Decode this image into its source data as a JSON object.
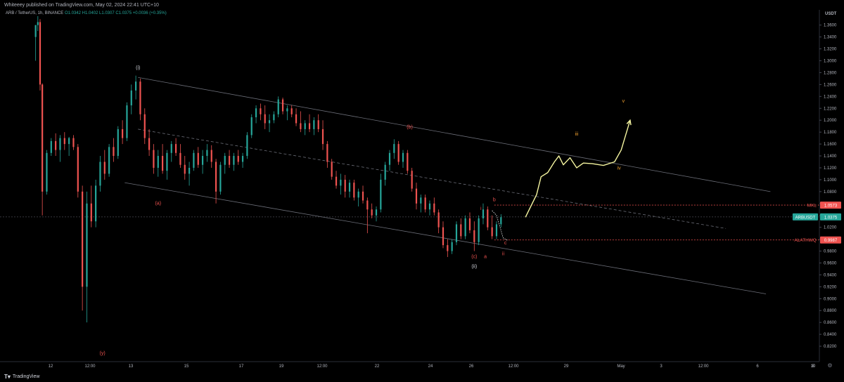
{
  "header": {
    "publish_line": "Whiteeey published on TradingView.com, May 02, 2024 22:41 UTC+10"
  },
  "legend": {
    "symbol": "ARB / TetherUS, 1h, BINANCE",
    "open": "O1.0342",
    "high": "H1.0402",
    "low": "L1.0307",
    "close": "C1.0375",
    "change": "+0.0036 (+0.35%)"
  },
  "colors": {
    "up": "#26a69a",
    "down": "#ef5350",
    "projection": "#f5f5a0",
    "wave_orange": "#f0a030",
    "wave_red": "#ef5350",
    "wave_white": "#d1d4dc"
  },
  "footer": {
    "brand": "TradingView"
  },
  "chart_data": {
    "type": "candlestick",
    "title": "",
    "currency_label": "USDT",
    "ylim": [
      0.8,
      1.375
    ],
    "x_ticks": [
      "12",
      "12:00",
      "13",
      "15",
      "17",
      "19",
      "12:00",
      "22",
      "24",
      "26",
      "12:00",
      "29",
      "May",
      "3",
      "12:00",
      "6",
      "8",
      "10"
    ],
    "y_ticks": [
      "1.3600",
      "1.3400",
      "1.3200",
      "1.3000",
      "1.2800",
      "1.2600",
      "1.2400",
      "1.2200",
      "1.2000",
      "1.1800",
      "1.1600",
      "1.1400",
      "1.1200",
      "1.1000",
      "1.0800",
      "1.0600",
      "1.0400",
      "1.0200",
      "1.0000",
      "0.9800",
      "0.9600",
      "0.9400",
      "0.9200",
      "0.9000",
      "0.8800",
      "0.8600",
      "0.8400",
      "0.8200"
    ],
    "price_labels": [
      {
        "name": "MKL",
        "value": "1.0573",
        "color": "#ef5350"
      },
      {
        "name": "ARBUSDT",
        "value": "1.0375",
        "color": "#26a69a"
      },
      {
        "name": "ALATHWQ",
        "value": "0.9987",
        "color": "#ef5350"
      }
    ],
    "wave_labels": [
      {
        "text": "(i)",
        "x": 15.6,
        "y": 1.286,
        "color": "white"
      },
      {
        "text": "(a)",
        "x": 16.5,
        "y": 1.058,
        "color": "red"
      },
      {
        "text": "(y)",
        "x": 14.0,
        "y": 0.806,
        "color": "red"
      },
      {
        "text": "(b)",
        "x": 27.8,
        "y": 1.186,
        "color": "red"
      },
      {
        "text": "(c)",
        "x": 30.7,
        "y": 0.968,
        "color": "red"
      },
      {
        "text": "(ii)",
        "x": 30.7,
        "y": 0.952,
        "color": "white"
      },
      {
        "text": "a",
        "x": 31.2,
        "y": 0.968,
        "color": "red"
      },
      {
        "text": "b",
        "x": 31.6,
        "y": 1.064,
        "color": "red"
      },
      {
        "text": "c",
        "x": 32.1,
        "y": 0.991,
        "color": "red"
      },
      {
        "text": "i",
        "x": 31.0,
        "y": 1.049,
        "color": "red"
      },
      {
        "text": "ii",
        "x": 32.0,
        "y": 0.973,
        "color": "red"
      },
      {
        "text": "iii",
        "x": 35.3,
        "y": 1.174,
        "color": "orange"
      },
      {
        "text": "iv",
        "x": 37.2,
        "y": 1.117,
        "color": "orange"
      },
      {
        "text": "v",
        "x": 37.4,
        "y": 1.23,
        "color": "orange"
      }
    ],
    "channel_lines": [
      {
        "name": "upper",
        "points": [
          [
            15.6,
            1.272
          ],
          [
            44.0,
            1.08
          ]
        ],
        "style": "solid"
      },
      {
        "name": "middle",
        "points": [
          [
            15.6,
            1.185
          ],
          [
            42.0,
            1.018
          ]
        ],
        "style": "dashed"
      },
      {
        "name": "lower",
        "points": [
          [
            15.0,
            1.095
          ],
          [
            43.8,
            0.908
          ]
        ],
        "style": "solid"
      }
    ],
    "horizontal_levels": [
      {
        "name": "MKL",
        "value": 1.0573
      },
      {
        "name": "ARBUSDT",
        "value": 1.0375
      },
      {
        "name": "ALATHWQ",
        "value": 0.9987
      }
    ],
    "projection_path": [
      [
        33.0,
        1.037
      ],
      [
        33.5,
        1.075
      ],
      [
        33.7,
        1.105
      ],
      [
        34.0,
        1.112
      ],
      [
        34.3,
        1.13
      ],
      [
        34.5,
        1.14
      ],
      [
        34.7,
        1.125
      ],
      [
        35.0,
        1.137
      ],
      [
        35.3,
        1.12
      ],
      [
        35.6,
        1.128
      ],
      [
        36.0,
        1.127
      ],
      [
        36.5,
        1.124
      ],
      [
        37.0,
        1.13
      ],
      [
        37.3,
        1.15
      ],
      [
        37.7,
        1.2
      ]
    ],
    "candles": [
      {
        "t": 11.0,
        "o": 1.34,
        "h": 1.36,
        "l": 1.3,
        "c": 1.36
      },
      {
        "t": 11.1,
        "o": 1.36,
        "h": 1.375,
        "l": 1.35,
        "c": 1.365
      },
      {
        "t": 11.2,
        "o": 1.365,
        "h": 1.37,
        "l": 1.25,
        "c": 1.26
      },
      {
        "t": 11.3,
        "o": 1.26,
        "h": 1.262,
        "l": 1.04,
        "c": 1.08
      },
      {
        "t": 11.5,
        "o": 1.08,
        "h": 1.15,
        "l": 1.075,
        "c": 1.145
      },
      {
        "t": 11.7,
        "o": 1.145,
        "h": 1.17,
        "l": 1.14,
        "c": 1.165
      },
      {
        "t": 11.9,
        "o": 1.165,
        "h": 1.178,
        "l": 1.14,
        "c": 1.15
      },
      {
        "t": 12.1,
        "o": 1.15,
        "h": 1.175,
        "l": 1.13,
        "c": 1.17
      },
      {
        "t": 12.3,
        "o": 1.17,
        "h": 1.18,
        "l": 1.15,
        "c": 1.16
      },
      {
        "t": 12.5,
        "o": 1.16,
        "h": 1.172,
        "l": 1.14,
        "c": 1.17
      },
      {
        "t": 12.7,
        "o": 1.17,
        "h": 1.175,
        "l": 1.15,
        "c": 1.155
      },
      {
        "t": 12.9,
        "o": 1.155,
        "h": 1.16,
        "l": 1.07,
        "c": 1.08
      },
      {
        "t": 13.1,
        "o": 1.08,
        "h": 1.09,
        "l": 0.88,
        "c": 0.92
      },
      {
        "t": 13.3,
        "o": 0.92,
        "h": 1.08,
        "l": 0.86,
        "c": 1.06
      },
      {
        "t": 13.5,
        "o": 1.06,
        "h": 1.09,
        "l": 1.02,
        "c": 1.03
      },
      {
        "t": 13.7,
        "o": 1.03,
        "h": 1.1,
        "l": 1.02,
        "c": 1.09
      },
      {
        "t": 13.9,
        "o": 1.09,
        "h": 1.14,
        "l": 1.08,
        "c": 1.13
      },
      {
        "t": 14.1,
        "o": 1.13,
        "h": 1.15,
        "l": 1.1,
        "c": 1.11
      },
      {
        "t": 14.3,
        "o": 1.11,
        "h": 1.16,
        "l": 1.105,
        "c": 1.155
      },
      {
        "t": 14.5,
        "o": 1.155,
        "h": 1.17,
        "l": 1.13,
        "c": 1.14
      },
      {
        "t": 14.7,
        "o": 1.14,
        "h": 1.19,
        "l": 1.135,
        "c": 1.185
      },
      {
        "t": 14.9,
        "o": 1.185,
        "h": 1.2,
        "l": 1.16,
        "c": 1.17
      },
      {
        "t": 15.1,
        "o": 1.17,
        "h": 1.23,
        "l": 1.165,
        "c": 1.225
      },
      {
        "t": 15.3,
        "o": 1.225,
        "h": 1.26,
        "l": 1.21,
        "c": 1.25
      },
      {
        "t": 15.5,
        "o": 1.25,
        "h": 1.275,
        "l": 1.235,
        "c": 1.265
      },
      {
        "t": 15.7,
        "o": 1.265,
        "h": 1.27,
        "l": 1.2,
        "c": 1.21
      },
      {
        "t": 15.9,
        "o": 1.21,
        "h": 1.22,
        "l": 1.16,
        "c": 1.17
      },
      {
        "t": 16.1,
        "o": 1.17,
        "h": 1.185,
        "l": 1.14,
        "c": 1.15
      },
      {
        "t": 16.3,
        "o": 1.15,
        "h": 1.16,
        "l": 1.11,
        "c": 1.12
      },
      {
        "t": 16.5,
        "o": 1.12,
        "h": 1.15,
        "l": 1.105,
        "c": 1.14
      },
      {
        "t": 16.7,
        "o": 1.14,
        "h": 1.16,
        "l": 1.11,
        "c": 1.115
      },
      {
        "t": 16.9,
        "o": 1.115,
        "h": 1.15,
        "l": 1.1,
        "c": 1.145
      },
      {
        "t": 17.1,
        "o": 1.145,
        "h": 1.165,
        "l": 1.13,
        "c": 1.16
      },
      {
        "t": 17.3,
        "o": 1.16,
        "h": 1.17,
        "l": 1.14,
        "c": 1.145
      },
      {
        "t": 17.5,
        "o": 1.145,
        "h": 1.16,
        "l": 1.12,
        "c": 1.125
      },
      {
        "t": 17.7,
        "o": 1.125,
        "h": 1.14,
        "l": 1.1,
        "c": 1.11
      },
      {
        "t": 17.9,
        "o": 1.11,
        "h": 1.13,
        "l": 1.09,
        "c": 1.12
      },
      {
        "t": 18.1,
        "o": 1.12,
        "h": 1.15,
        "l": 1.115,
        "c": 1.145
      },
      {
        "t": 18.3,
        "o": 1.145,
        "h": 1.155,
        "l": 1.12,
        "c": 1.125
      },
      {
        "t": 18.5,
        "o": 1.125,
        "h": 1.15,
        "l": 1.11,
        "c": 1.14
      },
      {
        "t": 18.7,
        "o": 1.14,
        "h": 1.16,
        "l": 1.13,
        "c": 1.15
      },
      {
        "t": 18.9,
        "o": 1.15,
        "h": 1.158,
        "l": 1.12,
        "c": 1.13
      },
      {
        "t": 19.1,
        "o": 1.13,
        "h": 1.135,
        "l": 1.06,
        "c": 1.08
      },
      {
        "t": 19.3,
        "o": 1.08,
        "h": 1.13,
        "l": 1.075,
        "c": 1.125
      },
      {
        "t": 19.5,
        "o": 1.125,
        "h": 1.145,
        "l": 1.11,
        "c": 1.14
      },
      {
        "t": 19.7,
        "o": 1.14,
        "h": 1.15,
        "l": 1.12,
        "c": 1.125
      },
      {
        "t": 19.9,
        "o": 1.125,
        "h": 1.145,
        "l": 1.115,
        "c": 1.14
      },
      {
        "t": 20.1,
        "o": 1.14,
        "h": 1.15,
        "l": 1.125,
        "c": 1.13
      },
      {
        "t": 20.3,
        "o": 1.13,
        "h": 1.145,
        "l": 1.12,
        "c": 1.14
      },
      {
        "t": 20.5,
        "o": 1.14,
        "h": 1.18,
        "l": 1.135,
        "c": 1.175
      },
      {
        "t": 20.7,
        "o": 1.175,
        "h": 1.21,
        "l": 1.17,
        "c": 1.205
      },
      {
        "t": 20.9,
        "o": 1.205,
        "h": 1.225,
        "l": 1.195,
        "c": 1.22
      },
      {
        "t": 21.1,
        "o": 1.22,
        "h": 1.228,
        "l": 1.2,
        "c": 1.21
      },
      {
        "t": 21.3,
        "o": 1.21,
        "h": 1.225,
        "l": 1.185,
        "c": 1.195
      },
      {
        "t": 21.5,
        "o": 1.195,
        "h": 1.21,
        "l": 1.18,
        "c": 1.2
      },
      {
        "t": 21.7,
        "o": 1.2,
        "h": 1.215,
        "l": 1.195,
        "c": 1.21
      },
      {
        "t": 21.9,
        "o": 1.21,
        "h": 1.24,
        "l": 1.205,
        "c": 1.235
      },
      {
        "t": 22.1,
        "o": 1.235,
        "h": 1.238,
        "l": 1.21,
        "c": 1.215
      },
      {
        "t": 22.3,
        "o": 1.215,
        "h": 1.225,
        "l": 1.2,
        "c": 1.22
      },
      {
        "t": 22.5,
        "o": 1.22,
        "h": 1.225,
        "l": 1.205,
        "c": 1.21
      },
      {
        "t": 22.7,
        "o": 1.21,
        "h": 1.22,
        "l": 1.19,
        "c": 1.195
      },
      {
        "t": 22.9,
        "o": 1.195,
        "h": 1.215,
        "l": 1.18,
        "c": 1.185
      },
      {
        "t": 23.1,
        "o": 1.185,
        "h": 1.2,
        "l": 1.175,
        "c": 1.195
      },
      {
        "t": 23.3,
        "o": 1.195,
        "h": 1.21,
        "l": 1.18,
        "c": 1.185
      },
      {
        "t": 23.5,
        "o": 1.185,
        "h": 1.205,
        "l": 1.175,
        "c": 1.2
      },
      {
        "t": 23.7,
        "o": 1.2,
        "h": 1.21,
        "l": 1.18,
        "c": 1.185
      },
      {
        "t": 23.9,
        "o": 1.185,
        "h": 1.2,
        "l": 1.15,
        "c": 1.16
      },
      {
        "t": 24.1,
        "o": 1.16,
        "h": 1.165,
        "l": 1.12,
        "c": 1.13
      },
      {
        "t": 24.3,
        "o": 1.13,
        "h": 1.135,
        "l": 1.1,
        "c": 1.105
      },
      {
        "t": 24.5,
        "o": 1.105,
        "h": 1.115,
        "l": 1.085,
        "c": 1.09
      },
      {
        "t": 24.7,
        "o": 1.09,
        "h": 1.11,
        "l": 1.075,
        "c": 1.1
      },
      {
        "t": 24.9,
        "o": 1.1,
        "h": 1.108,
        "l": 1.07,
        "c": 1.08
      },
      {
        "t": 25.1,
        "o": 1.08,
        "h": 1.1,
        "l": 1.07,
        "c": 1.095
      },
      {
        "t": 25.3,
        "o": 1.095,
        "h": 1.1,
        "l": 1.065,
        "c": 1.07
      },
      {
        "t": 25.5,
        "o": 1.07,
        "h": 1.085,
        "l": 1.055,
        "c": 1.08
      },
      {
        "t": 25.7,
        "o": 1.08,
        "h": 1.09,
        "l": 1.06,
        "c": 1.065
      },
      {
        "t": 25.9,
        "o": 1.065,
        "h": 1.07,
        "l": 1.01,
        "c": 1.05
      },
      {
        "t": 26.1,
        "o": 1.05,
        "h": 1.06,
        "l": 1.035,
        "c": 1.04
      },
      {
        "t": 26.3,
        "o": 1.04,
        "h": 1.055,
        "l": 1.03,
        "c": 1.05
      },
      {
        "t": 26.5,
        "o": 1.05,
        "h": 1.11,
        "l": 1.045,
        "c": 1.1
      },
      {
        "t": 26.7,
        "o": 1.1,
        "h": 1.13,
        "l": 1.09,
        "c": 1.125
      },
      {
        "t": 26.9,
        "o": 1.125,
        "h": 1.15,
        "l": 1.115,
        "c": 1.145
      },
      {
        "t": 27.1,
        "o": 1.145,
        "h": 1.168,
        "l": 1.135,
        "c": 1.16
      },
      {
        "t": 27.3,
        "o": 1.16,
        "h": 1.165,
        "l": 1.125,
        "c": 1.13
      },
      {
        "t": 27.5,
        "o": 1.13,
        "h": 1.15,
        "l": 1.12,
        "c": 1.145
      },
      {
        "t": 27.7,
        "o": 1.145,
        "h": 1.15,
        "l": 1.11,
        "c": 1.115
      },
      {
        "t": 27.9,
        "o": 1.115,
        "h": 1.12,
        "l": 1.08,
        "c": 1.085
      },
      {
        "t": 28.1,
        "o": 1.085,
        "h": 1.095,
        "l": 1.05,
        "c": 1.06
      },
      {
        "t": 28.3,
        "o": 1.06,
        "h": 1.075,
        "l": 1.045,
        "c": 1.07
      },
      {
        "t": 28.5,
        "o": 1.07,
        "h": 1.075,
        "l": 1.045,
        "c": 1.05
      },
      {
        "t": 28.7,
        "o": 1.05,
        "h": 1.065,
        "l": 1.04,
        "c": 1.06
      },
      {
        "t": 28.9,
        "o": 1.06,
        "h": 1.07,
        "l": 1.04,
        "c": 1.045
      },
      {
        "t": 29.1,
        "o": 1.045,
        "h": 1.05,
        "l": 1.01,
        "c": 1.02
      },
      {
        "t": 29.3,
        "o": 1.02,
        "h": 1.03,
        "l": 0.985,
        "c": 0.99
      },
      {
        "t": 29.5,
        "o": 0.99,
        "h": 1.0,
        "l": 0.97,
        "c": 0.98
      },
      {
        "t": 29.7,
        "o": 0.98,
        "h": 1.0,
        "l": 0.975,
        "c": 0.995
      },
      {
        "t": 29.9,
        "o": 0.995,
        "h": 1.03,
        "l": 0.99,
        "c": 1.025
      },
      {
        "t": 30.1,
        "o": 1.025,
        "h": 1.035,
        "l": 1.0,
        "c": 1.005
      },
      {
        "t": 30.3,
        "o": 1.005,
        "h": 1.04,
        "l": 1.0,
        "c": 1.035
      },
      {
        "t": 30.5,
        "o": 1.035,
        "h": 1.045,
        "l": 1.01,
        "c": 1.015
      },
      {
        "t": 30.7,
        "o": 1.015,
        "h": 1.03,
        "l": 0.98,
        "c": 0.995
      },
      {
        "t": 30.9,
        "o": 0.995,
        "h": 1.04,
        "l": 0.99,
        "c": 1.035
      },
      {
        "t": 31.1,
        "o": 1.035,
        "h": 1.06,
        "l": 1.025,
        "c": 1.05
      },
      {
        "t": 31.3,
        "o": 1.05,
        "h": 1.055,
        "l": 1.015,
        "c": 1.02
      },
      {
        "t": 31.5,
        "o": 1.02,
        "h": 1.04,
        "l": 1.0,
        "c": 1.005
      },
      {
        "t": 31.7,
        "o": 1.005,
        "h": 1.03,
        "l": 1.0,
        "c": 1.025
      },
      {
        "t": 31.9,
        "o": 1.025,
        "h": 1.042,
        "l": 1.02,
        "c": 1.037
      }
    ]
  }
}
